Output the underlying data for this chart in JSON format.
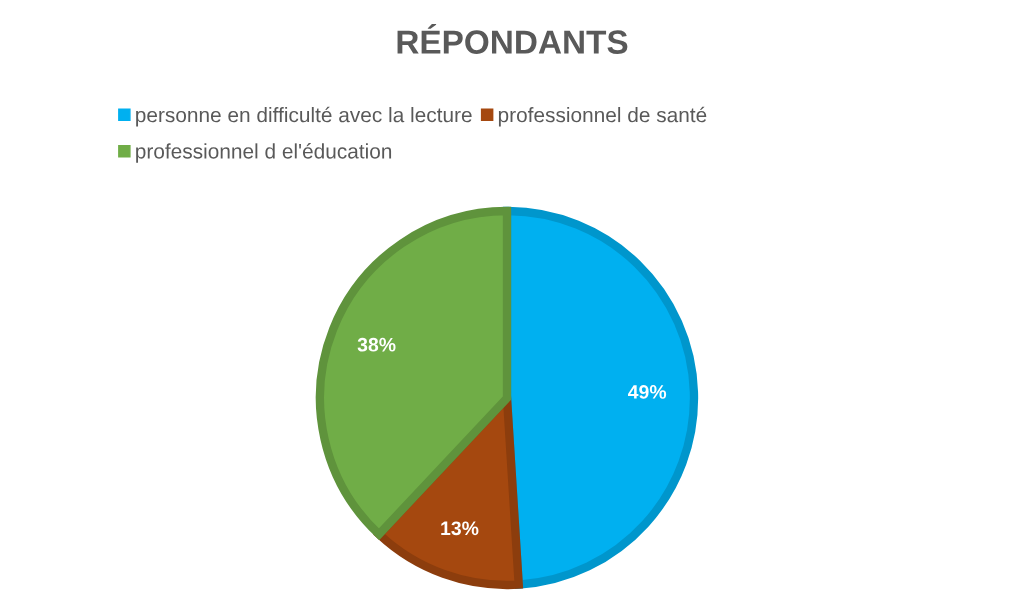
{
  "chart_data": {
    "type": "pie",
    "title": "RÉPONDANTS",
    "categories": [
      "personne en difficulté avec la lecture",
      "professionnel de santé",
      "professionnel d el'éducation"
    ],
    "values": [
      49,
      13,
      38
    ],
    "colors": [
      "#00b0f0",
      "#a5480f",
      "#70ad47"
    ],
    "value_labels": [
      "49%",
      "13%",
      "38%"
    ],
    "legend": "top"
  }
}
